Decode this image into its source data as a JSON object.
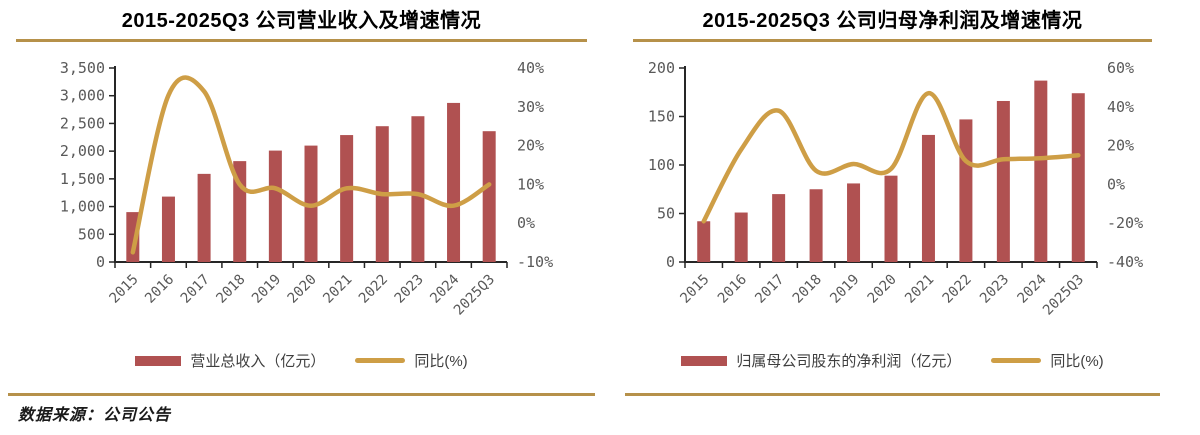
{
  "source": {
    "label": "数据来源：公司公告"
  },
  "colors": {
    "bar": "#B05151",
    "line": "#CE9E46",
    "rule": "#B6914A",
    "axis": "#262626",
    "tick_label": "#595959",
    "legend_text": "#3f3f3f"
  },
  "chart_data": [
    {
      "type": "bar+line",
      "title": "2015-2025Q3 公司营业收入及增速情况",
      "categories": [
        "2015",
        "2016",
        "2017",
        "2018",
        "2019",
        "2020",
        "2021",
        "2022",
        "2023",
        "2024",
        "2025Q3"
      ],
      "bar_series": {
        "name": "营业总收入（亿元）",
        "axis": "left",
        "values": [
          900,
          1180,
          1590,
          1820,
          2010,
          2100,
          2290,
          2450,
          2630,
          2870,
          2360
        ]
      },
      "line_series": {
        "name": "同比(%)",
        "axis": "right",
        "values": [
          -7.5,
          33,
          34,
          10,
          9,
          4.5,
          9,
          7.5,
          7.5,
          4.5,
          10
        ]
      },
      "left_axis": {
        "min": 0,
        "max": 3500,
        "step": 500,
        "thousands": true
      },
      "right_axis": {
        "min": -10,
        "max": 40,
        "step": 10,
        "suffix": "%"
      },
      "grid": false,
      "legend_position": "bottom"
    },
    {
      "type": "bar+line",
      "title": "2015-2025Q3 公司归母净利润及增速情况",
      "categories": [
        "2015",
        "2016",
        "2017",
        "2018",
        "2019",
        "2020",
        "2021",
        "2022",
        "2023",
        "2024",
        "2025Q3"
      ],
      "bar_series": {
        "name": "归属母公司股东的净利润（亿元）",
        "axis": "left",
        "values": [
          42,
          51,
          70,
          75,
          81,
          89,
          131,
          147,
          166,
          187,
          174
        ]
      },
      "line_series": {
        "name": "同比(%)",
        "axis": "right",
        "values": [
          -19,
          18,
          38,
          7,
          10.5,
          8,
          47,
          12,
          13,
          13.5,
          15
        ]
      },
      "left_axis": {
        "min": 0,
        "max": 200,
        "step": 50,
        "thousands": false
      },
      "right_axis": {
        "min": -40,
        "max": 60,
        "step": 20,
        "suffix": "%"
      },
      "grid": false,
      "legend_position": "bottom"
    }
  ]
}
